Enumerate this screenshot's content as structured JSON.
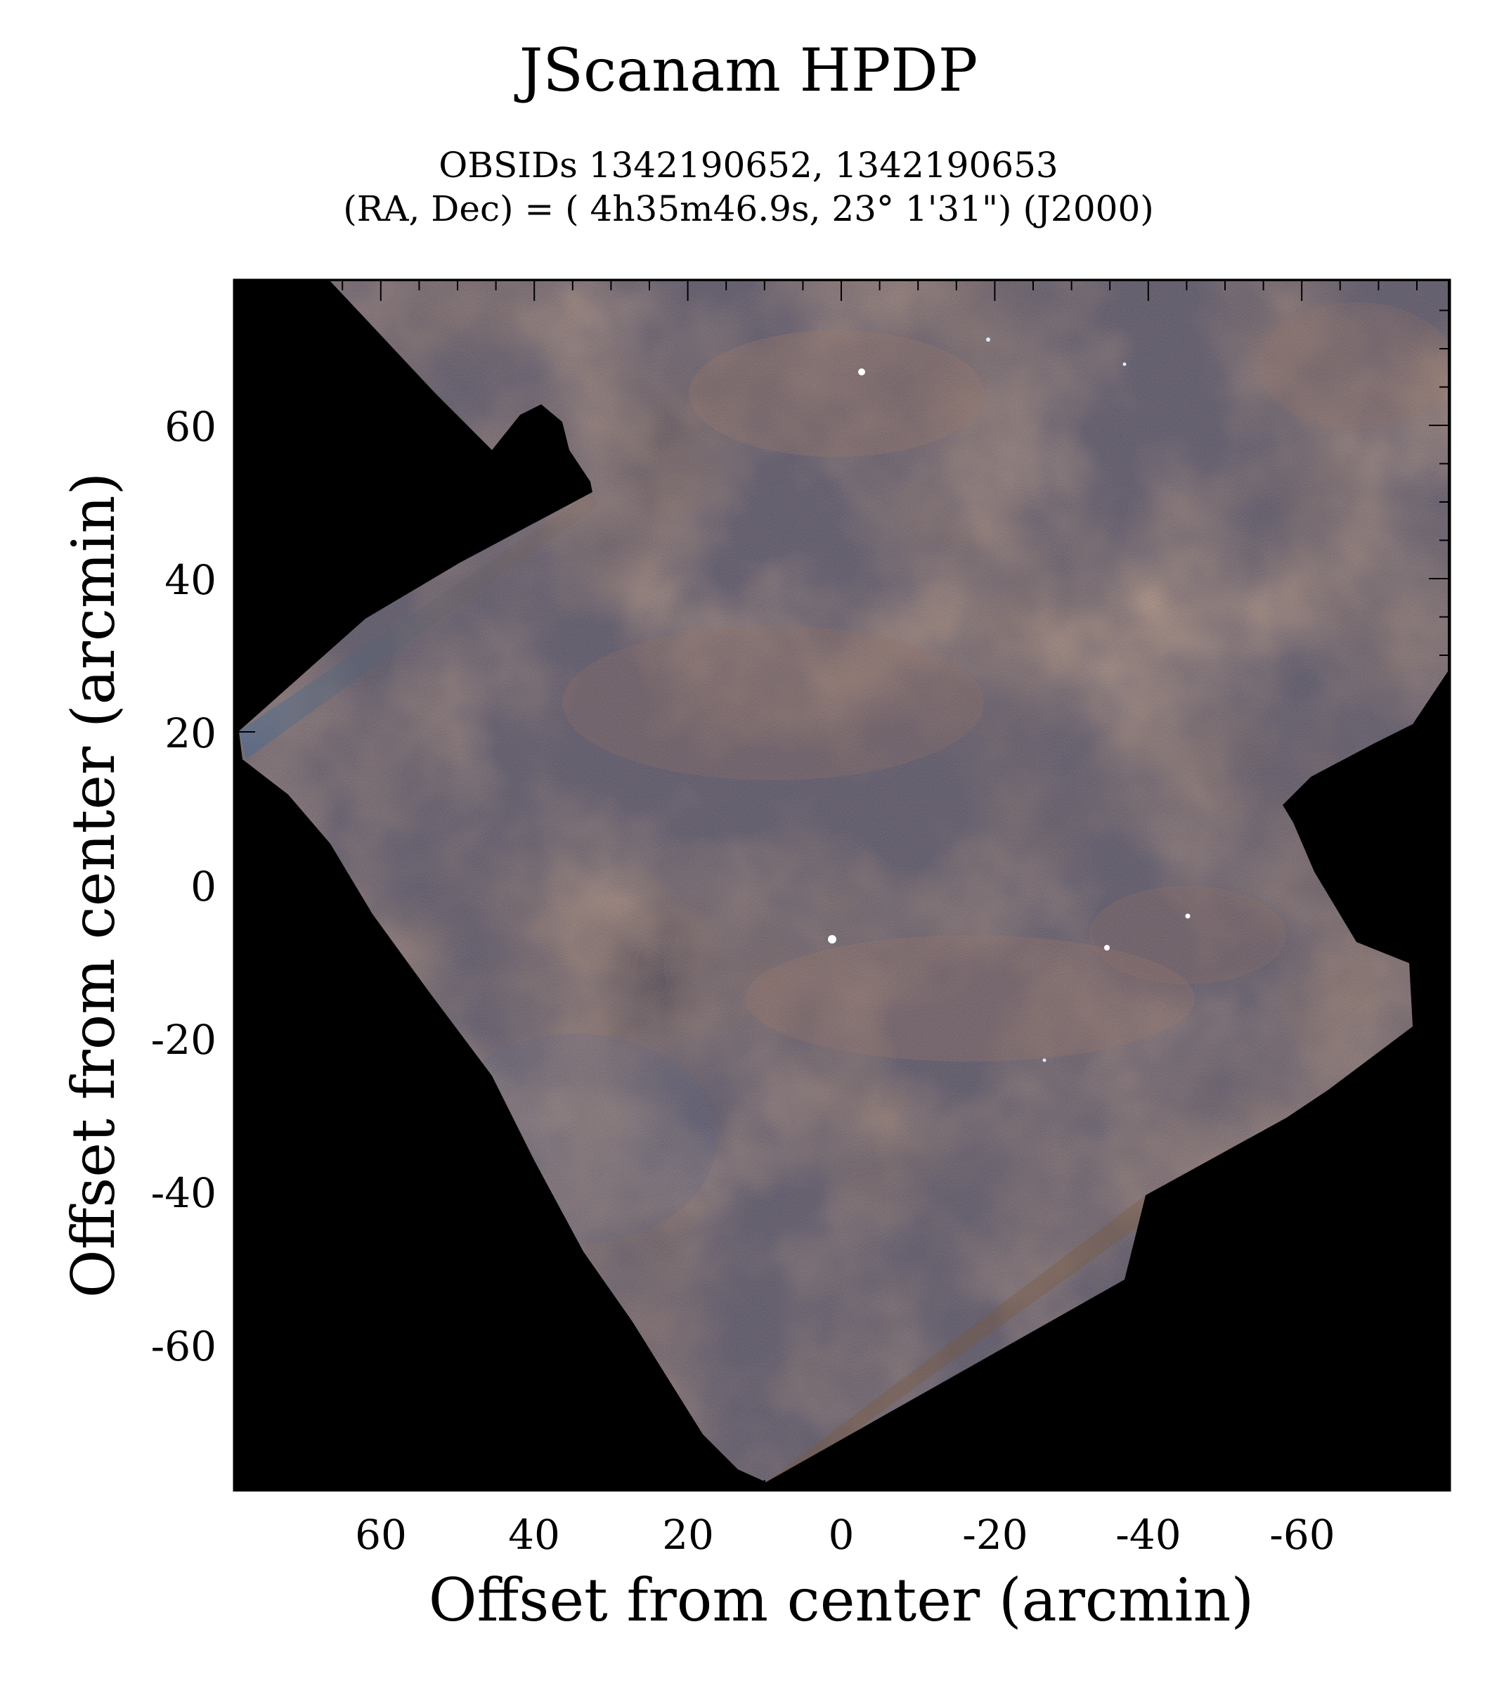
{
  "title": "JScanam HPDP",
  "subtitle_line1": "OBSIDs 1342190652, 1342190653",
  "subtitle_line2": "(RA, Dec) = ( 4h35m46.9s, 23° 1'31\") (J2000)",
  "x_axis": {
    "label": "Offset from center (arcmin)",
    "ticks": [
      "60",
      "40",
      "20",
      "0",
      "-20",
      "-40",
      "-60"
    ]
  },
  "y_axis": {
    "label": "Offset from center (arcmin)",
    "ticks": [
      "60",
      "40",
      "20",
      "0",
      "-20",
      "-40",
      "-60"
    ]
  },
  "colors": {
    "background": "#000000",
    "dust_orange": "#a8703a",
    "dust_blue": "#3c5a78",
    "frame": "#000000"
  }
}
